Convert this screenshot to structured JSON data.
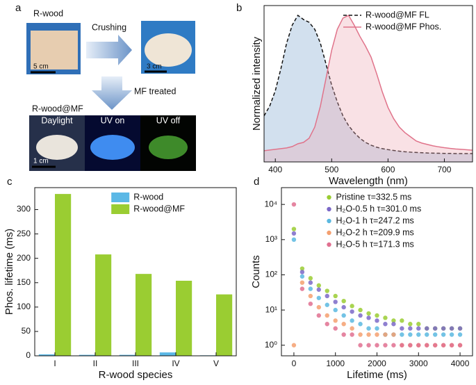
{
  "photo_panel": {
    "panel_label": "a",
    "top_left": "R-wood",
    "arrow_right": "Crushing",
    "scale_left": "5 cm",
    "scale_right": "3 cm",
    "arrow_down": "MF treated",
    "bottom_title": "R-wood@MF",
    "bottom_labels": [
      "Daylight",
      "UV on",
      "UV off"
    ],
    "scale_bottom": "1 cm"
  },
  "chart_data": [
    {
      "type": "line",
      "panel_label": "b",
      "x_label": "Wavelength (nm)",
      "y_label": "Normalized intensity",
      "x": [
        380,
        390,
        400,
        410,
        420,
        430,
        440,
        450,
        460,
        470,
        480,
        490,
        500,
        510,
        520,
        530,
        540,
        550,
        560,
        570,
        580,
        590,
        600,
        610,
        620,
        630,
        640,
        650,
        660,
        670,
        680,
        690,
        700,
        710,
        720,
        730,
        740,
        750
      ],
      "series": [
        {
          "name": "R-wood@MF FL",
          "color": "#111111",
          "dash": true,
          "area_color": "#7fa6cf",
          "values": [
            0.28,
            0.35,
            0.46,
            0.62,
            0.8,
            0.93,
            1.0,
            0.97,
            0.95,
            0.9,
            0.8,
            0.65,
            0.5,
            0.38,
            0.28,
            0.21,
            0.16,
            0.12,
            0.09,
            0.07,
            0.055,
            0.045,
            0.038,
            0.032,
            0.027,
            0.023,
            0.02,
            0.018,
            0.016,
            0.014,
            0.013,
            0.012,
            0.011,
            0.011,
            0.01,
            0.01,
            0.01,
            0.01
          ]
        },
        {
          "name": "R-wood@MF Phos.",
          "color": "#e0738a",
          "dash": false,
          "area_color": "#eeaab5",
          "values": [
            0.03,
            0.035,
            0.04,
            0.045,
            0.05,
            0.06,
            0.08,
            0.09,
            0.12,
            0.2,
            0.35,
            0.55,
            0.75,
            0.9,
            0.98,
            1.0,
            0.93,
            0.85,
            0.78,
            0.7,
            0.58,
            0.45,
            0.34,
            0.26,
            0.2,
            0.16,
            0.13,
            0.1,
            0.085,
            0.075,
            0.065,
            0.058,
            0.052,
            0.047,
            0.043,
            0.04,
            0.037,
            0.034
          ]
        }
      ],
      "xlim": [
        380,
        750
      ],
      "xticks": [
        400,
        500,
        600,
        700
      ],
      "ylim": [
        -0.05,
        1.07
      ],
      "legend": "upper right"
    },
    {
      "type": "bar",
      "panel_label": "c",
      "x_label": "R-wood species",
      "y_label": "Phos. lifetime (ms)",
      "categories": [
        "I",
        "II",
        "III",
        "IV",
        "V"
      ],
      "series": [
        {
          "name": "R-wood",
          "color": "#5bb8e6",
          "values": [
            3,
            2,
            2,
            7,
            1
          ]
        },
        {
          "name": "R-wood@MF",
          "color": "#9acd32",
          "values": [
            332,
            208,
            168,
            154,
            126
          ]
        }
      ],
      "ylim": [
        0,
        345
      ],
      "yticks": [
        0,
        50,
        100,
        150,
        200,
        250,
        300
      ],
      "legend": "upper right"
    },
    {
      "type": "scatter",
      "panel_label": "d",
      "x_label": "Lifetime (ms)",
      "y_label": "Counts",
      "log_y": true,
      "x": [
        0,
        200,
        400,
        600,
        800,
        1000,
        1200,
        1400,
        1600,
        1800,
        2000,
        2200,
        2400,
        2600,
        2800,
        3000,
        3200,
        3400,
        3600,
        3800,
        4000
      ],
      "series": [
        {
          "name": "Pristine τ=332.5 ms",
          "color": "#9acd32",
          "values": [
            2000,
            150,
            80,
            50,
            35,
            25,
            18,
            13,
            10,
            8,
            7,
            6,
            5,
            5,
            4,
            4,
            3,
            3,
            3,
            3,
            3
          ]
        },
        {
          "name": "H₂O-0.5 h τ=301.0 ms",
          "color": "#7b68c8",
          "values": [
            1500,
            120,
            60,
            38,
            25,
            17,
            12,
            9,
            7,
            6,
            5,
            4,
            4,
            3,
            3,
            3,
            3,
            3,
            3,
            3,
            3
          ]
        },
        {
          "name": "H₂O-1 h τ=247.2 ms",
          "color": "#5bb8e0",
          "values": [
            1000,
            90,
            40,
            22,
            14,
            10,
            7,
            5,
            4,
            3,
            3,
            2,
            2,
            2,
            2,
            2,
            2,
            2,
            2,
            2,
            2
          ]
        },
        {
          "name": "H₂O-2 h τ=209.9 ms",
          "color": "#f4a070",
          "values": [
            1,
            60,
            25,
            12,
            7,
            5,
            4,
            3,
            2,
            2,
            2,
            2,
            2,
            1,
            1,
            1,
            1,
            1,
            1,
            1,
            1
          ]
        },
        {
          "name": "H₂O-5 h τ=171.3 ms",
          "color": "#e07090",
          "values": [
            10000,
            40,
            15,
            7,
            4,
            3,
            2,
            2,
            1,
            1,
            1,
            1,
            1,
            1,
            1,
            1,
            1,
            1,
            1,
            1,
            1
          ]
        }
      ],
      "xlim": [
        -300,
        4300
      ],
      "xticks": [
        0,
        1000,
        2000,
        3000,
        4000
      ],
      "ylim": [
        0.5,
        30000
      ],
      "yticks": [
        {
          "value": 1,
          "label": "10⁰"
        },
        {
          "value": 10,
          "label": "10¹"
        },
        {
          "value": 100,
          "label": "10²"
        },
        {
          "value": 1000,
          "label": "10³"
        },
        {
          "value": 10000,
          "label": "10⁴"
        }
      ],
      "legend": "upper right"
    }
  ]
}
